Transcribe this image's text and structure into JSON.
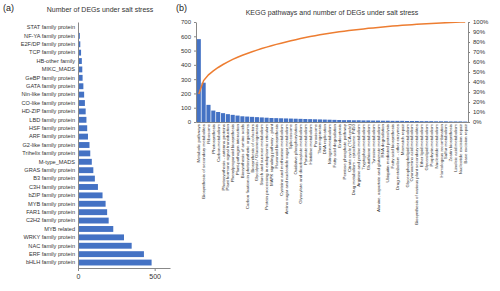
{
  "chart_data": [
    {
      "type": "bar",
      "orientation": "horizontal",
      "panel_label": "(a)",
      "title": "Number of DEGs under salt stress",
      "categories": [
        "STAT family protein",
        "NF-YA family protein",
        "E2F/DP family protein",
        "TCP family protein",
        "HB-other family",
        "MIKC_MADS",
        "GeBP family protein",
        "GATA family protein",
        "Nin-like family protein",
        "CO-like family protein",
        "HD-ZIP family protein",
        "LBD family protein",
        "HSF family protein",
        "ARF family protein",
        "G2-like family protein",
        "Trihelix family protein",
        "M-type_MADS",
        "GRAS family protein",
        "B3 family protein",
        "C3H family protein",
        "bZIP family protein",
        "MYB family protein",
        "FAR1 family protein",
        "C2H2 family protein",
        "MYB related",
        "WRKY family protein",
        "NAC family protein",
        "ERF family protein",
        "bHLH family protein"
      ],
      "values": [
        5,
        12,
        15,
        20,
        25,
        28,
        30,
        35,
        40,
        45,
        50,
        55,
        60,
        65,
        75,
        80,
        90,
        100,
        110,
        130,
        160,
        180,
        190,
        200,
        230,
        300,
        350,
        430,
        480
      ],
      "color": "#4472c4",
      "xlim": [
        0,
        600
      ],
      "xticks": [
        0,
        500
      ],
      "grid": false
    },
    {
      "type": "bar",
      "panel_label": "(b)",
      "title": "KEGG pathways and number of DEGs under salt stress",
      "categories": [
        "Metabolic pathways",
        "Biosynthesis of secondary metabolites",
        "Ribosome",
        "Photosynthesis",
        "Carbon metabolism",
        "Photosynthesis - antenna proteins",
        "Plant hormone signal transduction",
        "Phenylpropanoid biosynthesis",
        "Plant-pathogen interaction",
        "Biosynthesis of amino acids",
        "Carbon fixation in photosynthetic organisms",
        "Biosynthesis of cofactors",
        "Glycolysis / Gluconeogenesis",
        "Starch and sucrose metabolism",
        "Protein processing in endoplasmic reticulum",
        "MAPK signaling pathway - plant",
        "Flavonoid biosynthesis",
        "Cysteine and methionine metabolism",
        "Amino sugar and nucleotide sugar metabolism",
        "Spliceosome",
        "Oxidative phosphorylation",
        "Glyoxylate and dicarboxylate metabolism",
        "Pyruvate metabolism",
        "Histidine metabolism",
        "Peroxisome",
        "Thermogenesis",
        "DNA replication",
        "Nitrogen metabolism",
        "Fatty acid degradation",
        "Endocytosis",
        "Pentose phosphate pathway",
        "Citrate cycle (TCA cycle)",
        "Drug metabolism - cytochrome P450",
        "Arginine and proline metabolism",
        "Tryptophan metabolism",
        "Glutathione metabolism",
        "Tyrosine metabolism",
        "Alanine, aspartate and glutamate metabolism",
        "RNA degradation",
        "Ubiquitin mediated proteolysis",
        "Fatty acid biosynthesis",
        "Drug metabolism - other enzymes",
        "Mismatch repair",
        "Glycerophospholipid metabolism",
        "Cyanoamino acid metabolism",
        "Biosynthesis of various plant secondary metabolites",
        "Ether lipid metabolism",
        "Glycerolipid metabolism",
        "Porphyrin metabolism",
        "Nucleotide metabolism",
        "Homologous recombination",
        "Sulfur metabolism",
        "Zeatin biosynthesis",
        "Linoleic acid metabolism",
        "Nucleotide excision repair",
        "Base excision repair"
      ],
      "series": [
        {
          "type": "bar",
          "color": "#4472c4",
          "values": [
            580,
            275,
            120,
            80,
            70,
            62,
            55,
            50,
            45,
            40,
            38,
            36,
            34,
            32,
            30,
            28,
            27,
            26,
            25,
            24,
            23,
            22,
            21,
            20,
            19,
            18,
            17,
            16,
            15,
            14,
            13,
            13,
            12,
            12,
            11,
            11,
            10,
            10,
            9,
            9,
            8,
            8,
            8,
            7,
            7,
            7,
            6,
            6,
            6,
            5,
            5,
            5,
            4,
            4,
            4,
            3
          ]
        },
        {
          "type": "line",
          "color": "#ed7d31",
          "axis": "y2",
          "values": [
            28.1,
            41.4,
            47.2,
            51.1,
            54.5,
            57.5,
            60.1,
            62.6,
            64.7,
            66.7,
            68.5,
            70.3,
            71.9,
            73.5,
            74.9,
            76.3,
            77.6,
            78.8,
            80.0,
            81.2,
            82.3,
            83.4,
            84.4,
            85.4,
            86.3,
            87.2,
            88.0,
            88.8,
            89.5,
            90.2,
            90.8,
            91.4,
            92.0,
            92.6,
            93.1,
            93.7,
            94.1,
            94.6,
            95.1,
            95.5,
            95.9,
            96.3,
            96.7,
            97.0,
            97.3,
            97.7,
            98.0,
            98.3,
            98.5,
            98.8,
            99.0,
            99.3,
            99.5,
            99.7,
            99.9,
            100
          ]
        }
      ],
      "ylim": [
        0,
        700
      ],
      "yticks": [
        0,
        100,
        200,
        300,
        400,
        500,
        600,
        700
      ],
      "y2lim": [
        0,
        100
      ],
      "y2ticks": [
        {
          "value": 0,
          "label": "0%"
        },
        {
          "value": 10,
          "label": "10%"
        },
        {
          "value": 20,
          "label": "20%"
        },
        {
          "value": 30,
          "label": "30%"
        },
        {
          "value": 40,
          "label": "40%"
        },
        {
          "value": 50,
          "label": "50%"
        },
        {
          "value": 60,
          "label": "60%"
        },
        {
          "value": 70,
          "label": "70%"
        },
        {
          "value": 80,
          "label": "80%"
        },
        {
          "value": 90,
          "label": "90%"
        },
        {
          "value": 100,
          "label": "100%"
        }
      ],
      "grid": false
    }
  ]
}
